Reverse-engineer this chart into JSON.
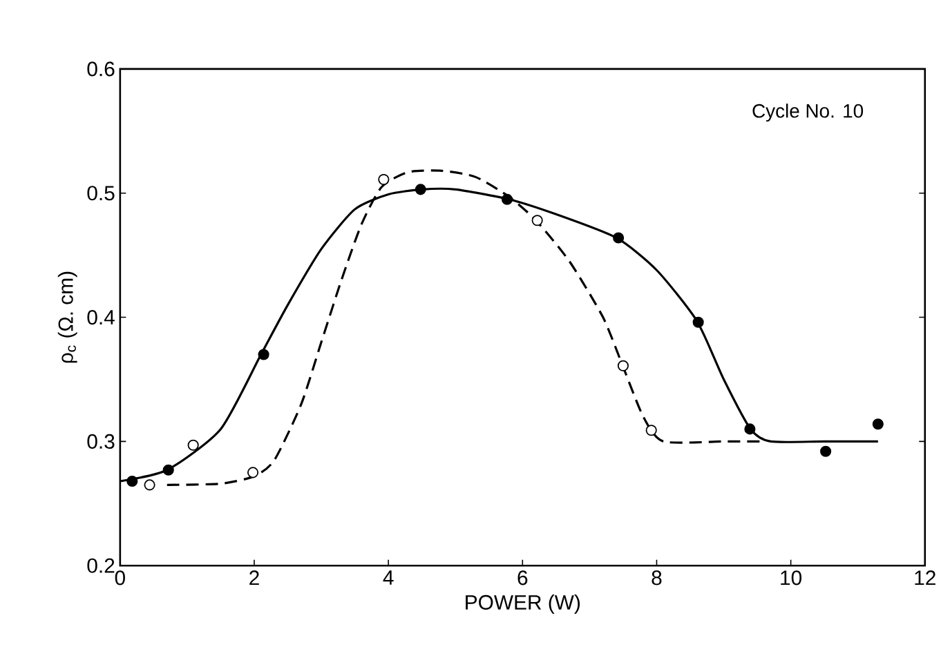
{
  "chart_data": {
    "type": "scatter",
    "xlabel": "POWER (W)",
    "ylabel": "ρ$_{c}$ (Ω. cm)",
    "annotations": [
      "Cycle No. 10"
    ],
    "xlim": [
      0,
      12
    ],
    "ylim": [
      0.2,
      0.6
    ],
    "xticks": [
      0,
      2,
      4,
      6,
      8,
      10,
      12
    ],
    "yticks": [
      0.2,
      0.3,
      0.4,
      0.5,
      0.6
    ],
    "grid": false,
    "series": [
      {
        "type": "line",
        "line_style": "solid",
        "marker": "none",
        "color": "#000000",
        "x": [
          0,
          0.7,
          1.5,
          2.1,
          2.5,
          3,
          3.5,
          4,
          4.5,
          5,
          5.8,
          6.5,
          7.4,
          8,
          8.6,
          9,
          9.4,
          9.7,
          10.5,
          11.3
        ],
        "values": [
          0.268,
          0.277,
          0.31,
          0.37,
          0.41,
          0.455,
          0.487,
          0.499,
          0.503,
          0.503,
          0.495,
          0.483,
          0.464,
          0.438,
          0.397,
          0.35,
          0.31,
          0.3,
          0.3,
          0.3
        ]
      },
      {
        "type": "line",
        "line_style": "dashed",
        "marker": "none",
        "color": "#000000",
        "x": [
          0.7,
          1.5,
          2,
          2.3,
          2.7,
          3,
          3.3,
          3.6,
          3.9,
          4.3,
          4.8,
          5.3,
          5.8,
          6.2,
          6.7,
          7.2,
          7.5,
          7.8,
          8.1,
          9,
          9.6
        ],
        "values": [
          0.265,
          0.266,
          0.272,
          0.285,
          0.33,
          0.38,
          0.43,
          0.475,
          0.505,
          0.517,
          0.518,
          0.513,
          0.497,
          0.478,
          0.445,
          0.4,
          0.36,
          0.32,
          0.3,
          0.3,
          0.3
        ]
      },
      {
        "marker": "circle",
        "color": "#000000",
        "x": [
          0.18,
          0.72,
          2.14,
          4.48,
          5.77,
          7.43,
          8.62,
          9.39,
          10.52,
          11.3
        ],
        "values": [
          0.268,
          0.277,
          0.37,
          0.503,
          0.495,
          0.464,
          0.396,
          0.31,
          0.292,
          0.314
        ]
      },
      {
        "marker": "circle",
        "color": "#ffffff",
        "x": [
          0.44,
          1.09,
          1.98,
          3.93,
          6.22,
          7.5,
          7.92
        ],
        "values": [
          0.265,
          0.297,
          0.275,
          0.511,
          0.478,
          0.361,
          0.309
        ]
      }
    ]
  }
}
